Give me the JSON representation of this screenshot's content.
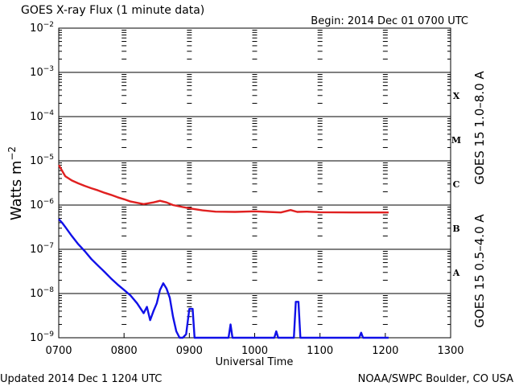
{
  "chart_data": {
    "type": "line",
    "title": "GOES X-ray Flux (1 minute data)",
    "begin_label": "Begin: 2014 Dec 01 0700 UTC",
    "xlabel": "Universal Time",
    "ylabel_main": "Watts m",
    "ylabel_sup": "−2",
    "x_ticks": [
      "0700",
      "0800",
      "0900",
      "1000",
      "1100",
      "1200",
      "1300"
    ],
    "x_range_hours": [
      7,
      13
    ],
    "y_scale": "log",
    "ylim": [
      1e-09,
      0.01
    ],
    "y_ticks": [
      {
        "base": "10",
        "exp": "−2",
        "value": 0.01
      },
      {
        "base": "10",
        "exp": "−3",
        "value": 0.001
      },
      {
        "base": "10",
        "exp": "−4",
        "value": 0.0001
      },
      {
        "base": "10",
        "exp": "−5",
        "value": 1e-05
      },
      {
        "base": "10",
        "exp": "−6",
        "value": 1e-06
      },
      {
        "base": "10",
        "exp": "−7",
        "value": 1e-07
      },
      {
        "base": "10",
        "exp": "−8",
        "value": 1e-08
      },
      {
        "base": "10",
        "exp": "−9",
        "value": 1e-09
      }
    ],
    "flare_classes": [
      {
        "label": "X",
        "value": 0.0003
      },
      {
        "label": "M",
        "value": 3e-05
      },
      {
        "label": "C",
        "value": 3e-06
      },
      {
        "label": "B",
        "value": 3e-07
      },
      {
        "label": "A",
        "value": 3e-08
      }
    ],
    "grid": true,
    "series": [
      {
        "name": "GOES 15 1.0–8.0 A",
        "color": "#e02020",
        "points": [
          [
            7.0,
            8e-06
          ],
          [
            7.05,
            6e-06
          ],
          [
            7.1,
            4.5e-06
          ],
          [
            7.2,
            3.6e-06
          ],
          [
            7.3,
            3.1e-06
          ],
          [
            7.4,
            2.7e-06
          ],
          [
            7.5,
            2.4e-06
          ],
          [
            7.6,
            2.15e-06
          ],
          [
            7.7,
            1.9e-06
          ],
          [
            7.8,
            1.7e-06
          ],
          [
            7.9,
            1.5e-06
          ],
          [
            8.0,
            1.35e-06
          ],
          [
            8.1,
            1.2e-06
          ],
          [
            8.3,
            1.05e-06
          ],
          [
            8.45,
            1.15e-06
          ],
          [
            8.55,
            1.25e-06
          ],
          [
            8.65,
            1.15e-06
          ],
          [
            8.75,
            1e-06
          ],
          [
            8.9,
            9e-07
          ],
          [
            9.05,
            8.2e-07
          ],
          [
            9.2,
            7.6e-07
          ],
          [
            9.4,
            7.1e-07
          ],
          [
            9.7,
            7e-07
          ],
          [
            10.0,
            7.2e-07
          ],
          [
            10.2,
            7e-07
          ],
          [
            10.4,
            6.8e-07
          ],
          [
            10.55,
            7.7e-07
          ],
          [
            10.65,
            7e-07
          ],
          [
            10.8,
            7.1e-07
          ],
          [
            11.0,
            6.9e-07
          ],
          [
            11.5,
            6.8e-07
          ],
          [
            12.05,
            6.8e-07
          ]
        ]
      },
      {
        "name": "GOES 15 0.5–4.0 A",
        "color": "#1010e8",
        "points": [
          [
            7.0,
            4.8e-07
          ],
          [
            7.05,
            4e-07
          ],
          [
            7.1,
            3.2e-07
          ],
          [
            7.2,
            2e-07
          ],
          [
            7.3,
            1.3e-07
          ],
          [
            7.4,
            9e-08
          ],
          [
            7.5,
            6e-08
          ],
          [
            7.6,
            4.3e-08
          ],
          [
            7.7,
            3.1e-08
          ],
          [
            7.8,
            2.2e-08
          ],
          [
            7.9,
            1.6e-08
          ],
          [
            8.0,
            1.2e-08
          ],
          [
            8.1,
            9e-09
          ],
          [
            8.2,
            6e-09
          ],
          [
            8.3,
            3.6e-09
          ],
          [
            8.35,
            5e-09
          ],
          [
            8.4,
            2.5e-09
          ],
          [
            8.45,
            4e-09
          ],
          [
            8.5,
            6e-09
          ],
          [
            8.55,
            1.2e-08
          ],
          [
            8.6,
            1.7e-08
          ],
          [
            8.65,
            1.3e-08
          ],
          [
            8.7,
            8e-09
          ],
          [
            8.75,
            3e-09
          ],
          [
            8.8,
            1.4e-09
          ],
          [
            8.85,
            1e-09
          ],
          [
            8.9,
            1e-09
          ],
          [
            8.95,
            1.2e-09
          ],
          [
            9.0,
            4.5e-09
          ],
          [
            9.05,
            4.5e-09
          ],
          [
            9.08,
            1e-09
          ],
          [
            9.6,
            1e-09
          ],
          [
            9.63,
            2e-09
          ],
          [
            9.66,
            1e-09
          ],
          [
            10.3,
            1e-09
          ],
          [
            10.33,
            1.4e-09
          ],
          [
            10.36,
            1e-09
          ],
          [
            10.6,
            1e-09
          ],
          [
            10.63,
            6.5e-09
          ],
          [
            10.67,
            6.5e-09
          ],
          [
            10.7,
            1e-09
          ],
          [
            11.6,
            1e-09
          ],
          [
            11.63,
            1.3e-09
          ],
          [
            11.66,
            1e-09
          ],
          [
            12.05,
            1e-09
          ]
        ]
      }
    ]
  },
  "footer": {
    "updated": "Updated 2014 Dec  1 1204 UTC",
    "source": "NOAA/SWPC Boulder, CO USA"
  }
}
